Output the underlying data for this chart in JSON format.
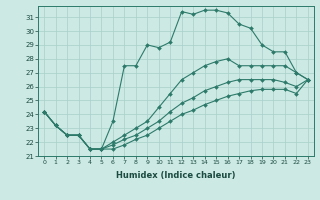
{
  "xlabel": "Humidex (Indice chaleur)",
  "xlim": [
    -0.5,
    23.5
  ],
  "ylim": [
    21,
    31.8
  ],
  "xticks": [
    0,
    1,
    2,
    3,
    4,
    5,
    6,
    7,
    8,
    9,
    10,
    11,
    12,
    13,
    14,
    15,
    16,
    17,
    18,
    19,
    20,
    21,
    22,
    23
  ],
  "yticks": [
    21,
    22,
    23,
    24,
    25,
    26,
    27,
    28,
    29,
    30,
    31
  ],
  "line_color": "#2d7a6a",
  "bg_color": "#cce9e4",
  "grid_color": "#a8d0ca",
  "line_jagged_x": [
    0,
    1,
    2,
    3,
    4,
    5,
    6,
    7,
    8,
    9,
    10,
    11,
    12,
    13,
    14,
    15,
    16,
    17,
    18,
    19,
    20,
    21,
    22,
    23
  ],
  "line_jagged_y": [
    24.2,
    23.2,
    22.5,
    22.5,
    21.5,
    21.5,
    23.5,
    27.5,
    27.5,
    29.0,
    28.8,
    29.2,
    31.4,
    31.2,
    31.5,
    31.5,
    31.3,
    30.5,
    30.2,
    29.0,
    28.5,
    28.5,
    27.0,
    26.5
  ],
  "line_upper_x": [
    0,
    1,
    2,
    3,
    4,
    5,
    6,
    7,
    8,
    9,
    10,
    11,
    12,
    13,
    14,
    15,
    16,
    17,
    18,
    19,
    20,
    21,
    22,
    23
  ],
  "line_upper_y": [
    24.2,
    23.2,
    22.5,
    22.5,
    21.5,
    21.5,
    22.0,
    22.5,
    23.0,
    23.5,
    24.5,
    25.5,
    26.5,
    27.0,
    27.5,
    27.8,
    28.0,
    27.5,
    27.5,
    27.5,
    27.5,
    27.5,
    27.0,
    26.5
  ],
  "line_mid_x": [
    0,
    1,
    2,
    3,
    4,
    5,
    6,
    7,
    8,
    9,
    10,
    11,
    12,
    13,
    14,
    15,
    16,
    17,
    18,
    19,
    20,
    21,
    22,
    23
  ],
  "line_mid_y": [
    24.2,
    23.2,
    22.5,
    22.5,
    21.5,
    21.5,
    21.8,
    22.2,
    22.5,
    23.0,
    23.5,
    24.2,
    24.8,
    25.2,
    25.7,
    26.0,
    26.3,
    26.5,
    26.5,
    26.5,
    26.5,
    26.3,
    26.0,
    26.5
  ],
  "line_lower_x": [
    0,
    1,
    2,
    3,
    4,
    5,
    6,
    7,
    8,
    9,
    10,
    11,
    12,
    13,
    14,
    15,
    16,
    17,
    18,
    19,
    20,
    21,
    22,
    23
  ],
  "line_lower_y": [
    24.2,
    23.2,
    22.5,
    22.5,
    21.5,
    21.5,
    21.5,
    21.8,
    22.2,
    22.5,
    23.0,
    23.5,
    24.0,
    24.3,
    24.7,
    25.0,
    25.3,
    25.5,
    25.7,
    25.8,
    25.8,
    25.8,
    25.5,
    26.5
  ]
}
